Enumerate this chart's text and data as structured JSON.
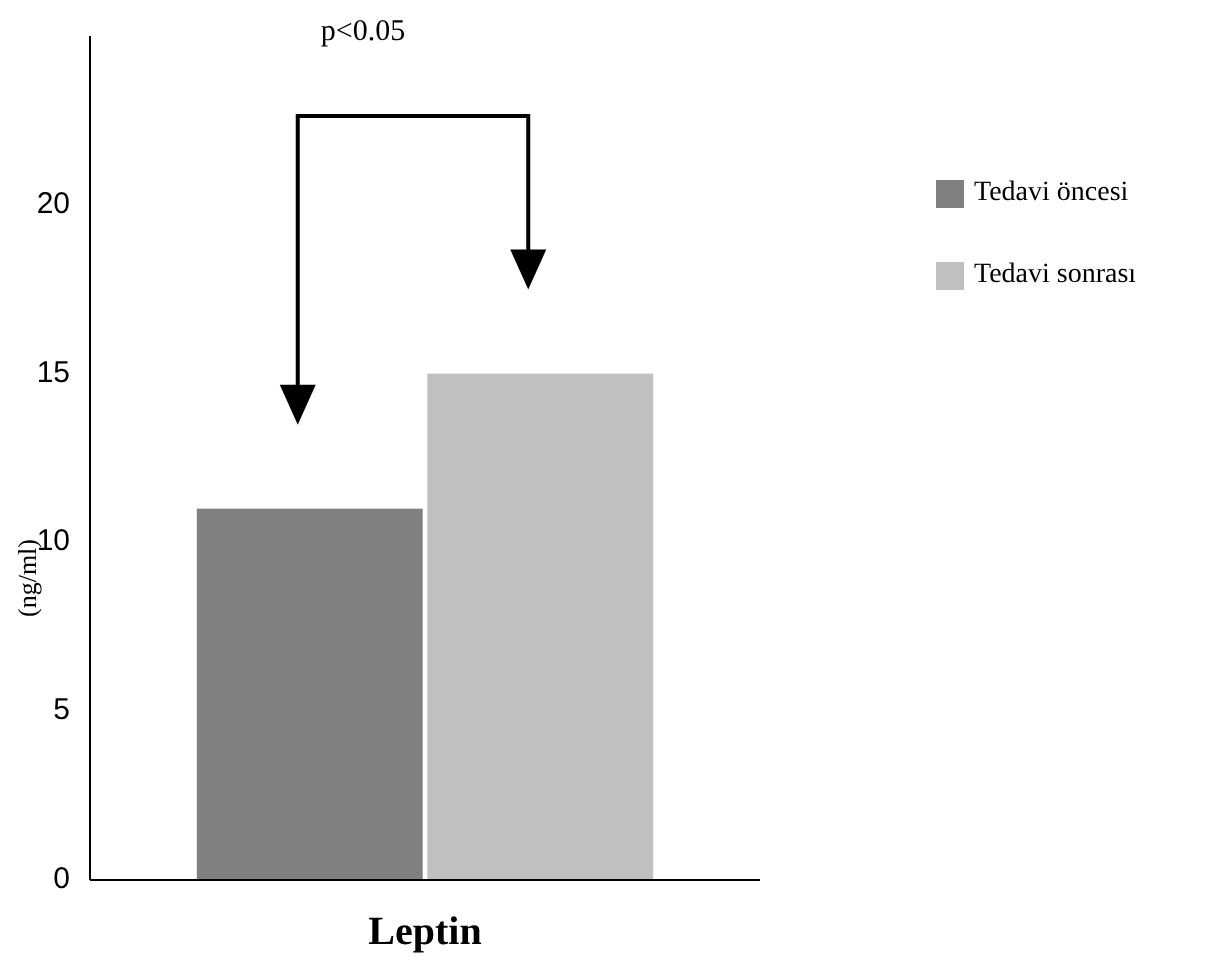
{
  "chart_data": {
    "type": "bar",
    "ylabel": "(ng/ml)",
    "categories": [
      "Leptin"
    ],
    "series": [
      {
        "name": "Tedavi öncesi",
        "color": "#808080",
        "values": [
          11
        ]
      },
      {
        "name": "Tedavi sonrası",
        "color": "#c0c0c0",
        "values": [
          15
        ]
      }
    ],
    "ylim": [
      0,
      25
    ],
    "yticks": [
      0,
      5,
      10,
      15,
      20
    ],
    "grid": false,
    "legend": "right",
    "annotations": [
      "p<0.05"
    ]
  }
}
